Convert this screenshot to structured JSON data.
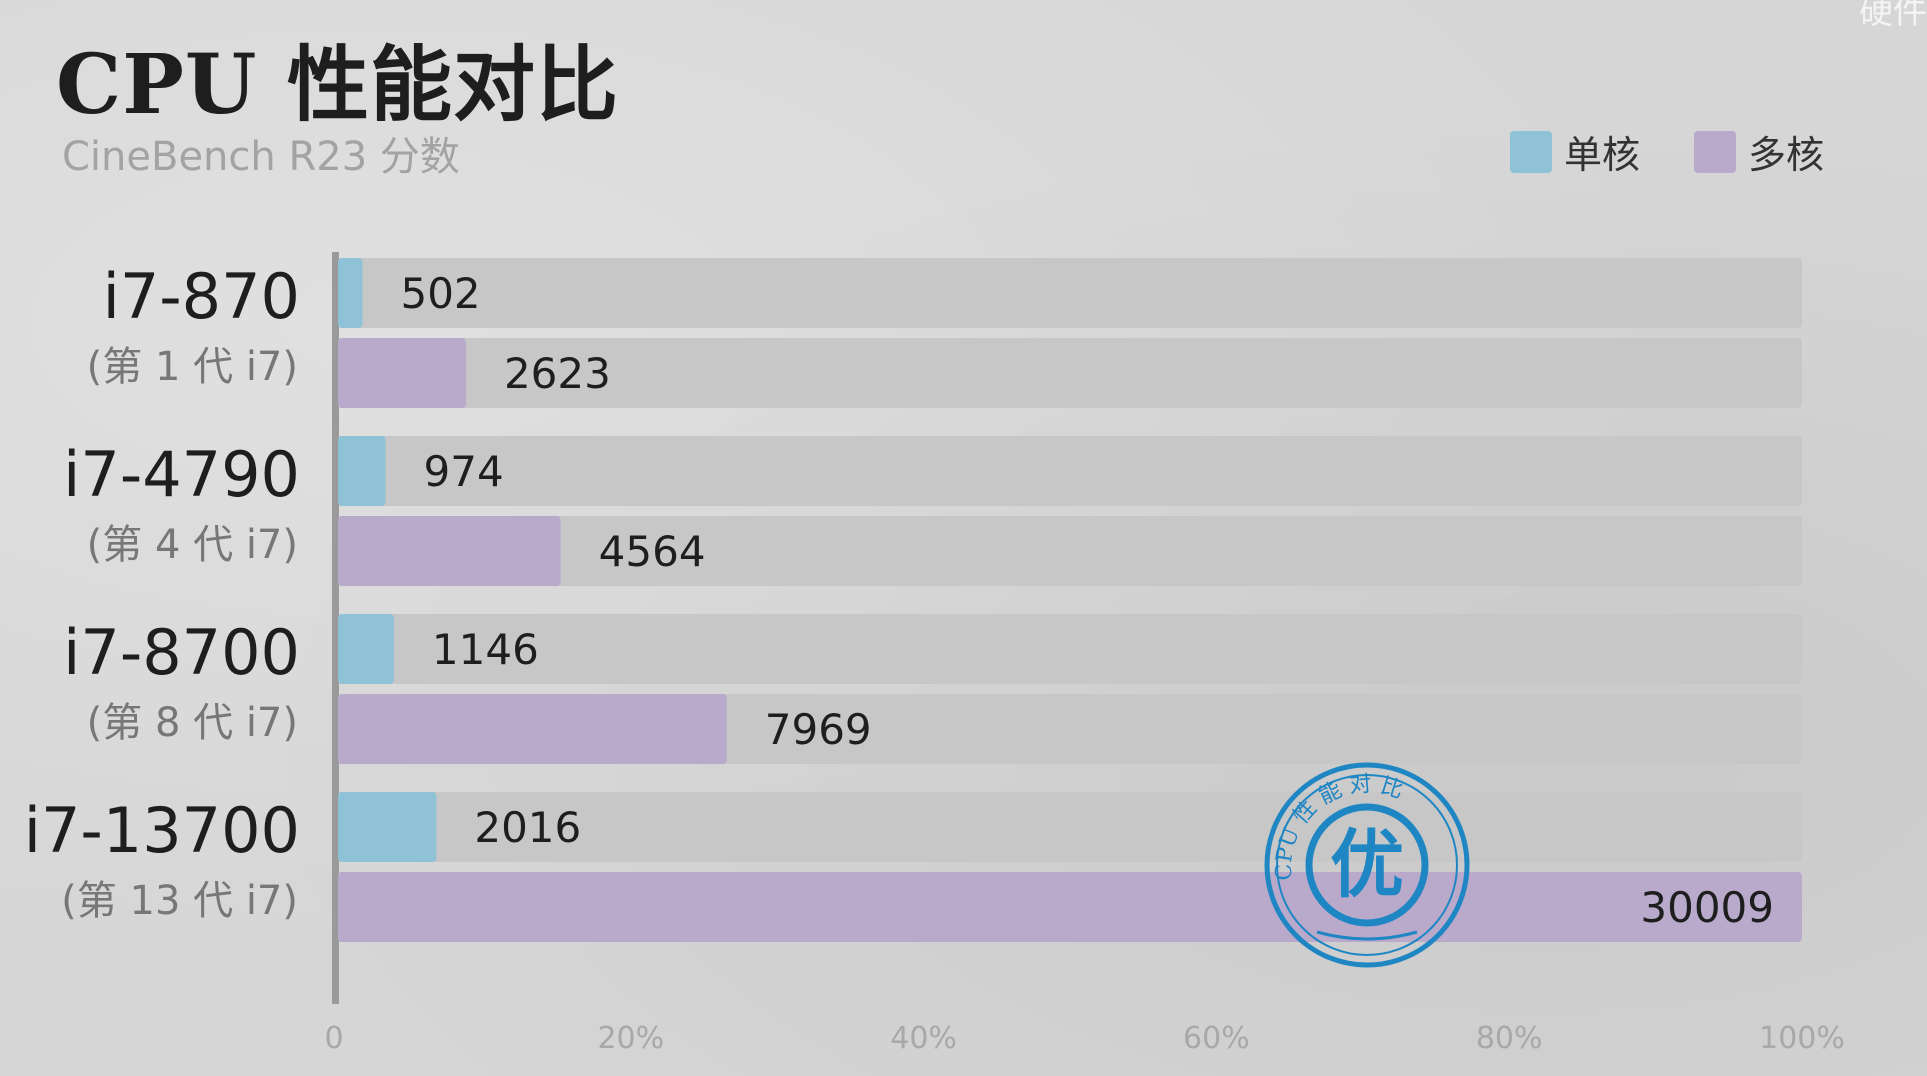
{
  "title": "CPU 性能对比",
  "subtitle": "CineBench R23 分数",
  "watermark": "硬件",
  "legend": [
    {
      "label": "单核",
      "color": "#8fc2d6"
    },
    {
      "label": "多核",
      "color": "#b9a9cb"
    }
  ],
  "stamp": {
    "top_text": "CPU 性 能 对 比",
    "center_text": "优"
  },
  "colors": {
    "track": "#c7c7c7",
    "single": "#8fc2d6",
    "multi": "#b9a9cb",
    "stamp": "#1f86c4"
  },
  "chart_data": {
    "type": "bar",
    "orientation": "horizontal",
    "categories": [
      "i7-870",
      "i7-4790",
      "i7-8700",
      "i7-13700"
    ],
    "category_sublabels": [
      "(第 1 代 i7)",
      "(第 4 代 i7)",
      "(第 8 代 i7)",
      "(第 13 代 i7)"
    ],
    "series": [
      {
        "name": "单核",
        "values": [
          502,
          974,
          1146,
          2016
        ]
      },
      {
        "name": "多核",
        "values": [
          2623,
          4564,
          7969,
          30009
        ]
      }
    ],
    "x_ticks": [
      "0",
      "20%",
      "40%",
      "60%",
      "80%",
      "100%"
    ],
    "xlim": [
      0,
      30009
    ],
    "grid": false,
    "legend_position": "top-right"
  }
}
